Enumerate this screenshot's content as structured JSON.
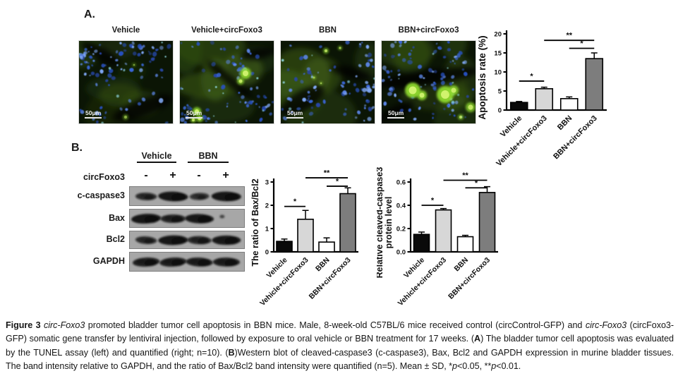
{
  "figure": {
    "panel_a_label": "A.",
    "panel_b_label": "B."
  },
  "panel_a": {
    "images": [
      {
        "title": "Vehicle",
        "scale_bar": "50μm"
      },
      {
        "title": "Vehicle+circFoxo3",
        "scale_bar": "50μm"
      },
      {
        "title": "BBN",
        "scale_bar": "50μm"
      },
      {
        "title": "BBN+circFoxo3",
        "scale_bar": "50μm"
      }
    ]
  },
  "panel_b": {
    "group_headers": [
      "Vehicle",
      "BBN"
    ],
    "lane_row_label": "circFoxo3",
    "lane_signs": [
      "-",
      "+",
      "-",
      "+"
    ],
    "blot_rows": [
      {
        "label": "c-caspase3",
        "bands": [
          0.55,
          1.0,
          0.45,
          1.0
        ]
      },
      {
        "label": "Bax",
        "bands": [
          1.0,
          0.75,
          0.95,
          0.12
        ]
      },
      {
        "label": "Bcl2",
        "bands": [
          0.55,
          1.0,
          0.7,
          0.95
        ]
      },
      {
        "label": "GAPDH",
        "bands": [
          0.85,
          0.85,
          0.85,
          0.85
        ]
      }
    ]
  },
  "chart_data": [
    {
      "type": "bar",
      "title": "",
      "xlabel": "",
      "ylabel": "Apoptosis rate (%)",
      "categories": [
        "Vehicle",
        "Vehicle+circFoxo3",
        "BBN",
        "BBN+circFoxo3"
      ],
      "values": [
        2.0,
        5.6,
        3.0,
        13.5
      ],
      "errors": [
        0.25,
        0.4,
        0.45,
        1.5
      ],
      "ylim": [
        0,
        20
      ],
      "ytick_values": [
        0,
        5,
        10,
        15,
        20
      ],
      "ytick_labels": [
        "0",
        "5",
        "10",
        "15",
        "20"
      ],
      "bar_colors": [
        "#0a0a0a",
        "#d7d7d7",
        "#ffffff",
        "#7d7d7d"
      ],
      "grid": false,
      "legend": false,
      "significance": [
        {
          "from": 0,
          "to": 1,
          "label": "*",
          "y": 7.6
        },
        {
          "from": 1,
          "to": 3,
          "label": "**",
          "y": 18.3
        },
        {
          "from": 2,
          "to": 3,
          "label": "*",
          "y": 16.2
        }
      ]
    },
    {
      "type": "bar",
      "title": "",
      "xlabel": "",
      "ylabel": "The ratio of Bax/Bcl2",
      "categories": [
        "Vehicle",
        "Vehicle+circFoxo3",
        "BBN",
        "BBN+circFoxo3"
      ],
      "values": [
        0.45,
        1.4,
        0.42,
        2.5
      ],
      "errors": [
        0.1,
        0.38,
        0.18,
        0.25
      ],
      "ylim": [
        0,
        3
      ],
      "ytick_values": [
        0,
        1,
        2,
        3
      ],
      "ytick_labels": [
        "0",
        "1",
        "2",
        "3"
      ],
      "bar_colors": [
        "#0a0a0a",
        "#d7d7d7",
        "#ffffff",
        "#7d7d7d"
      ],
      "grid": false,
      "legend": false,
      "significance": [
        {
          "from": 0,
          "to": 1,
          "label": "*",
          "y": 1.95
        },
        {
          "from": 1,
          "to": 3,
          "label": "**",
          "y": 3.18
        },
        {
          "from": 2,
          "to": 3,
          "label": "*",
          "y": 2.82
        }
      ]
    },
    {
      "type": "bar",
      "title": "",
      "xlabel": "",
      "ylabel": "Relative cleaved-caspase3",
      "ylabel2": "protein level",
      "categories": [
        "Vehicle",
        "Vehicle+circFoxo3",
        "BBN",
        "BBN+circFoxo3"
      ],
      "values": [
        0.15,
        0.36,
        0.13,
        0.51
      ],
      "errors": [
        0.02,
        0.012,
        0.012,
        0.05
      ],
      "ylim": [
        0,
        0.6
      ],
      "ytick_values": [
        0,
        0.2,
        0.4,
        0.6
      ],
      "ytick_labels": [
        "0.0",
        "0.2",
        "0.4",
        "0.6"
      ],
      "bar_colors": [
        "#0a0a0a",
        "#d7d7d7",
        "#ffffff",
        "#7d7d7d"
      ],
      "grid": false,
      "legend": false,
      "significance": [
        {
          "from": 0,
          "to": 1,
          "label": "*",
          "y": 0.4
        },
        {
          "from": 1,
          "to": 3,
          "label": "**",
          "y": 0.615
        },
        {
          "from": 2,
          "to": 3,
          "label": "*",
          "y": 0.55
        }
      ]
    }
  ],
  "caption": {
    "segments": [
      {
        "text": "Figure 3 ",
        "bold": true
      },
      {
        "text": "circ-Foxo3",
        "italic": true
      },
      {
        "text": " promoted bladder tumor cell apoptosis in BBN mice. Male, 8-week-old C57BL/6 mice received control (circControl-GFP) and "
      },
      {
        "text": "circ-Foxo3",
        "italic": true
      },
      {
        "text": " (circFoxo3-GFP) somatic gene transfer by lentiviral injection, followed by exposure to oral vehicle or BBN treatment for 17 weeks. ("
      },
      {
        "text": "A",
        "bold": true
      },
      {
        "text": ") The bladder tumor cell apoptosis was evaluated by the TUNEL assay (left) and quantified (right; n=10). ("
      },
      {
        "text": "B",
        "bold": true
      },
      {
        "text": ")Western blot of cleaved-caspase3 (c-caspase3), Bax, Bcl2 and GAPDH expression in murine bladder tissues. The band intensity relative to GAPDH, and the ratio of Bax/Bcl2 band intensity were quantified (n=5). Mean ± SD, *"
      },
      {
        "text": "p",
        "italic": true
      },
      {
        "text": "<0.05, **"
      },
      {
        "text": "p",
        "italic": true
      },
      {
        "text": "<0.01."
      }
    ]
  }
}
